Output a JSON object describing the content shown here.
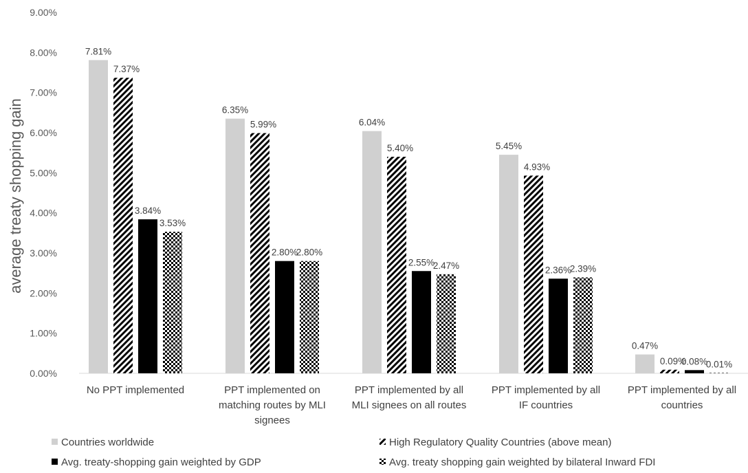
{
  "chart_data": {
    "type": "bar",
    "title": "",
    "xlabel": "",
    "ylabel": "average treaty shopping gain",
    "ylim": [
      0,
      9
    ],
    "yticks": [
      "0.00%",
      "1.00%",
      "2.00%",
      "3.00%",
      "4.00%",
      "5.00%",
      "6.00%",
      "7.00%",
      "8.00%",
      "9.00%"
    ],
    "grid": false,
    "legend_position": "bottom",
    "categories": [
      [
        "No PPT implemented"
      ],
      [
        "PPT implemented on",
        "matching routes by MLI",
        "signees"
      ],
      [
        "PPT implemented by all",
        "MLI signees on all routes"
      ],
      [
        "PPT implemented by all",
        "IF countries"
      ],
      [
        "PPT implemented by all",
        "countries"
      ]
    ],
    "series": [
      {
        "name": "Countries worldwide",
        "pattern": "solid-gray",
        "color": "#d0d0d0",
        "values": [
          7.81,
          6.35,
          6.04,
          5.45,
          0.47
        ],
        "labels": [
          "7.81%",
          "6.35%",
          "6.04%",
          "5.45%",
          "0.47%"
        ]
      },
      {
        "name": "High Regulatory Quality Countries (above mean)",
        "pattern": "diagonal-stripes",
        "color": "#000000",
        "values": [
          7.37,
          5.99,
          5.4,
          4.93,
          0.09
        ],
        "labels": [
          "7.37%",
          "5.99%",
          "5.40%",
          "4.93%",
          "0.09%"
        ]
      },
      {
        "name": "Avg. treaty-shopping gain weighted by GDP",
        "pattern": "solid-black",
        "color": "#000000",
        "values": [
          3.84,
          2.8,
          2.55,
          2.36,
          0.08
        ],
        "labels": [
          "3.84%",
          "2.80%",
          "2.55%",
          "2.36%",
          "0.08%"
        ]
      },
      {
        "name": "Avg. treaty shopping gain weighted by bilateral Inward FDI",
        "pattern": "checkerboard",
        "color": "#000000",
        "values": [
          3.53,
          2.8,
          2.47,
          2.39,
          0.01
        ],
        "labels": [
          "3.53%",
          "2.80%",
          "2.47%",
          "2.39%",
          "0.01%"
        ]
      }
    ]
  }
}
